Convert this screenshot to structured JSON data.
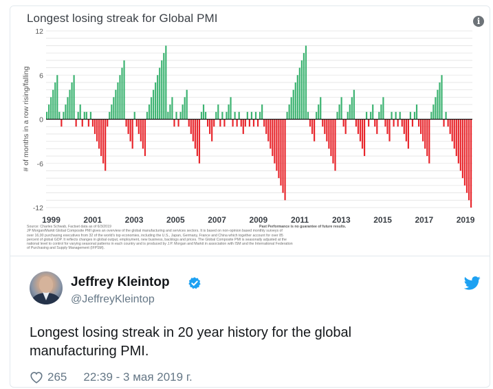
{
  "chart_data": {
    "type": "bar",
    "title": "Longest losing streak for Global PMI",
    "ylabel": "# of months in a row rising/falling",
    "ylim": [
      -12,
      12
    ],
    "yticks": [
      "12",
      "6",
      "0",
      "-6",
      "-12"
    ],
    "ytick_values": [
      12,
      6,
      0,
      -6,
      -12
    ],
    "xticks": [
      "1999",
      "2001",
      "2003",
      "2005",
      "2007",
      "2009",
      "2011",
      "2013",
      "2015",
      "2017",
      "2019"
    ],
    "xtick_years": [
      1999,
      2001,
      2003,
      2005,
      2007,
      2009,
      2011,
      2013,
      2015,
      2017,
      2019
    ],
    "start_year": 1998.75,
    "end_year": 2019.33,
    "grid": true,
    "colors": {
      "positive": "#3cb371",
      "negative": "#e8262c",
      "grid": "#e3e3e3",
      "zero": "#111111"
    },
    "values": [
      1,
      2,
      3,
      4,
      5,
      6,
      1,
      -1,
      1,
      2,
      3,
      4,
      5,
      6,
      -1,
      1,
      2,
      -1,
      1,
      1,
      -1,
      1,
      -1,
      -2,
      -3,
      -4,
      -5,
      -6,
      -7,
      -1,
      1,
      2,
      3,
      4,
      5,
      6,
      7,
      8,
      -1,
      -2,
      -3,
      -4,
      1,
      -1,
      -2,
      -3,
      -4,
      -5,
      1,
      2,
      3,
      4,
      5,
      6,
      7,
      8,
      9,
      10,
      1,
      2,
      3,
      -1,
      1,
      -1,
      1,
      2,
      3,
      4,
      -1,
      -2,
      -3,
      -4,
      -5,
      -6,
      1,
      2,
      1,
      -1,
      -2,
      -3,
      -1,
      1,
      2,
      -1,
      1,
      -1,
      1,
      2,
      3,
      -1,
      1,
      -1,
      1,
      -1,
      -2,
      -1,
      1,
      -1,
      1,
      -1,
      1,
      -1,
      1,
      2,
      -1,
      -2,
      -3,
      -4,
      -5,
      -6,
      -7,
      -8,
      -9,
      -10,
      -11,
      1,
      2,
      3,
      4,
      5,
      6,
      7,
      8,
      9,
      10,
      1,
      -1,
      -2,
      -3,
      1,
      2,
      3,
      -1,
      -2,
      -3,
      -4,
      -5,
      -6,
      -7,
      1,
      2,
      3,
      -1,
      -2,
      1,
      2,
      3,
      4,
      -1,
      -2,
      -3,
      -4,
      -5,
      1,
      -1,
      1,
      2,
      -1,
      -2,
      1,
      2,
      3,
      -1,
      -2,
      -3,
      1,
      -1,
      1,
      -1,
      1,
      -1,
      -2,
      -3,
      -4,
      1,
      -1,
      1,
      2,
      -1,
      -2,
      -3,
      -4,
      -5,
      -6,
      1,
      2,
      3,
      4,
      5,
      6,
      -1,
      1,
      -1,
      -2,
      -3,
      -4,
      -5,
      -6,
      -7,
      -8,
      -9,
      -10,
      -11,
      -12
    ],
    "source_lines": [
      "Source: Charles Schwab, Factset data as of 6/3/2019",
      "JP Morgan/Markit Global Composite PMI gives an overview of the global manufacturing and services sectors. It is based on non-opinion based monthly surveys of",
      "over 16,00 purchasing executives from 32 of the world's top economies, including the U.S., Japan, Germany, France and China which together account for over 85",
      "percent of global GDP. It reflects changes in global output, employment, new business, backlogs and prices. The Global Composite PMI is seasonally adjusted at the",
      "national level to control for varying seasonal patterns in each country and is produced by J.P. Morgan and Markit in association with ISM and the International Federation",
      "of Purchasing and Supply Management (IFPSM)."
    ],
    "disclaimer": "Past Performance is no guarantee of future results."
  },
  "tweet": {
    "author_name": "Jeffrey Kleintop",
    "author_handle": "@JeffreyKleintop",
    "text_line1": "Longest losing streak in 20 year history for the global",
    "text_line2": "manufacturing PMI.",
    "likes": "265",
    "timestamp": "22:39 - 3 мая 2019 г."
  },
  "icons": {
    "info": "info-icon",
    "verified": "verified-badge-icon",
    "bird": "twitter-bird-icon",
    "like": "heart-icon",
    "info_glyph": "i"
  },
  "brand": {
    "twitter_blue": "#1da1f2"
  }
}
